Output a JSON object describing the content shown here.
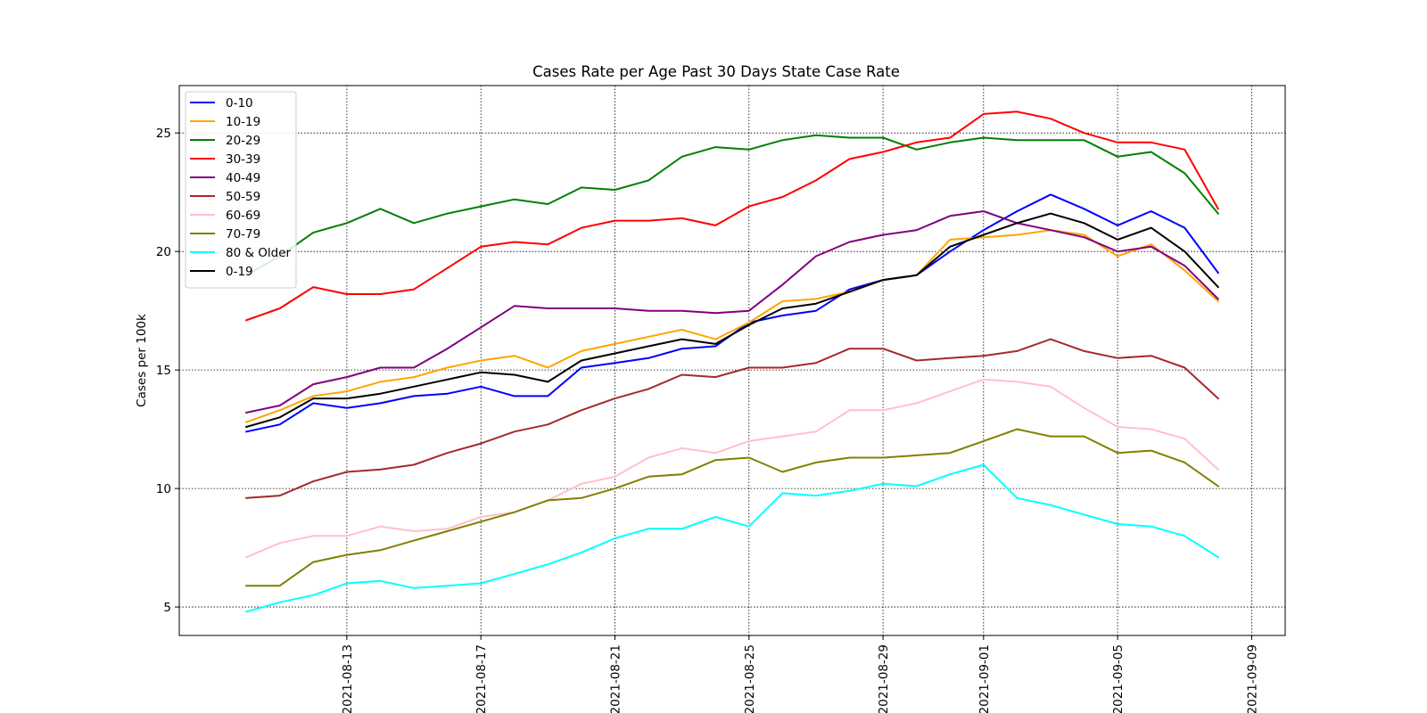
{
  "chart_data": {
    "type": "line",
    "title": "Cases Rate per Age Past 30 Days  State Case Rate",
    "xlabel": "",
    "ylabel": "Cases per 100k",
    "ylim": [
      3.8,
      27
    ],
    "xlim": [
      "2021-08-08",
      "2021-09-10"
    ],
    "grid": true,
    "legend_position": "top-left",
    "x": [
      "2021-08-10",
      "2021-08-11",
      "2021-08-12",
      "2021-08-13",
      "2021-08-14",
      "2021-08-15",
      "2021-08-16",
      "2021-08-17",
      "2021-08-18",
      "2021-08-19",
      "2021-08-20",
      "2021-08-21",
      "2021-08-22",
      "2021-08-23",
      "2021-08-24",
      "2021-08-25",
      "2021-08-26",
      "2021-08-27",
      "2021-08-28",
      "2021-08-29",
      "2021-08-30",
      "2021-08-31",
      "2021-09-01",
      "2021-09-02",
      "2021-09-03",
      "2021-09-04",
      "2021-09-05",
      "2021-09-06",
      "2021-09-07",
      "2021-09-08",
      "2021-09-09"
    ],
    "x_ticks": [
      "2021-08-13",
      "2021-08-17",
      "2021-08-21",
      "2021-08-25",
      "2021-08-29",
      "2021-09-01",
      "2021-09-05",
      "2021-09-09"
    ],
    "y_ticks": [
      5,
      10,
      15,
      20,
      25
    ],
    "series": [
      {
        "name": "0-10",
        "color": "#0000ff",
        "values": [
          12.4,
          12.7,
          13.6,
          13.4,
          13.6,
          13.9,
          14.0,
          14.3,
          13.9,
          13.9,
          15.1,
          15.3,
          15.5,
          15.9,
          16.0,
          17.0,
          17.3,
          17.5,
          18.4,
          18.8,
          19.0,
          20.0,
          20.9,
          21.7,
          22.4,
          21.8,
          21.1,
          21.7,
          21.0,
          19.1,
          null
        ]
      },
      {
        "name": "10-19",
        "color": "#ffa500",
        "values": [
          12.8,
          13.3,
          13.9,
          14.1,
          14.5,
          14.7,
          15.1,
          15.4,
          15.6,
          15.1,
          15.8,
          16.1,
          16.4,
          16.7,
          16.3,
          17.0,
          17.9,
          18.0,
          18.3,
          18.8,
          19.0,
          20.5,
          20.6,
          20.7,
          20.9,
          20.7,
          19.8,
          20.3,
          19.2,
          17.9,
          null
        ]
      },
      {
        "name": "20-29",
        "color": "#008000",
        "values": [
          19.0,
          19.8,
          20.8,
          21.2,
          21.8,
          21.2,
          21.6,
          21.9,
          22.2,
          22.0,
          22.7,
          22.6,
          23.0,
          24.0,
          24.4,
          24.3,
          24.7,
          24.9,
          24.8,
          24.8,
          24.3,
          24.6,
          24.8,
          24.7,
          24.7,
          24.7,
          24.0,
          24.2,
          23.3,
          21.6,
          null
        ]
      },
      {
        "name": "30-39",
        "color": "#ff0000",
        "values": [
          17.1,
          17.6,
          18.5,
          18.2,
          18.2,
          18.4,
          19.3,
          20.2,
          20.4,
          20.3,
          21.0,
          21.3,
          21.3,
          21.4,
          21.1,
          21.9,
          22.3,
          23.0,
          23.9,
          24.2,
          24.6,
          24.8,
          25.8,
          25.9,
          25.6,
          25.0,
          24.6,
          24.6,
          24.3,
          21.8,
          null
        ]
      },
      {
        "name": "40-49",
        "color": "#800080",
        "values": [
          13.2,
          13.5,
          14.4,
          14.7,
          15.1,
          15.1,
          15.9,
          16.8,
          17.7,
          17.6,
          17.6,
          17.6,
          17.5,
          17.5,
          17.4,
          17.5,
          18.6,
          19.8,
          20.4,
          20.7,
          20.9,
          21.5,
          21.7,
          21.2,
          20.9,
          20.6,
          20.0,
          20.2,
          19.4,
          18.0,
          null
        ]
      },
      {
        "name": "50-59",
        "color": "#a52a2a",
        "values": [
          9.6,
          9.7,
          10.3,
          10.7,
          10.8,
          11.0,
          11.5,
          11.9,
          12.4,
          12.7,
          13.3,
          13.8,
          14.2,
          14.8,
          14.7,
          15.1,
          15.1,
          15.3,
          15.9,
          15.9,
          15.4,
          15.5,
          15.6,
          15.8,
          16.3,
          15.8,
          15.5,
          15.6,
          15.1,
          13.8,
          null
        ]
      },
      {
        "name": "60-69",
        "color": "#ffc0cb",
        "values": [
          7.1,
          7.7,
          8.0,
          8.0,
          8.4,
          8.2,
          8.3,
          8.8,
          9.0,
          9.5,
          10.2,
          10.5,
          11.3,
          11.7,
          11.5,
          12.0,
          12.2,
          12.4,
          13.3,
          13.3,
          13.6,
          14.1,
          14.6,
          14.5,
          14.3,
          13.4,
          12.6,
          12.5,
          12.1,
          10.8,
          null
        ]
      },
      {
        "name": "70-79",
        "color": "#808000",
        "values": [
          5.9,
          5.9,
          6.9,
          7.2,
          7.4,
          7.8,
          8.2,
          8.6,
          9.0,
          9.5,
          9.6,
          10.0,
          10.5,
          10.6,
          11.2,
          11.3,
          10.7,
          11.1,
          11.3,
          11.3,
          11.4,
          11.5,
          12.0,
          12.5,
          12.2,
          12.2,
          11.5,
          11.6,
          11.1,
          10.1,
          null
        ]
      },
      {
        "name": "80 & Older",
        "color": "#00ffff",
        "values": [
          4.8,
          5.2,
          5.5,
          6.0,
          6.1,
          5.8,
          5.9,
          6.0,
          6.4,
          6.8,
          7.3,
          7.9,
          8.3,
          8.3,
          8.8,
          8.4,
          9.8,
          9.7,
          9.9,
          10.2,
          10.1,
          10.6,
          11.0,
          9.6,
          9.3,
          8.9,
          8.5,
          8.4,
          8.0,
          7.1,
          null
        ]
      },
      {
        "name": "0-19",
        "color": "#000000",
        "values": [
          12.6,
          13.0,
          13.8,
          13.8,
          14.0,
          14.3,
          14.6,
          14.9,
          14.8,
          14.5,
          15.4,
          15.7,
          16.0,
          16.3,
          16.1,
          16.9,
          17.6,
          17.8,
          18.3,
          18.8,
          19.0,
          20.2,
          20.7,
          21.2,
          21.6,
          21.2,
          20.5,
          21.0,
          20.0,
          18.5,
          null
        ]
      }
    ]
  }
}
